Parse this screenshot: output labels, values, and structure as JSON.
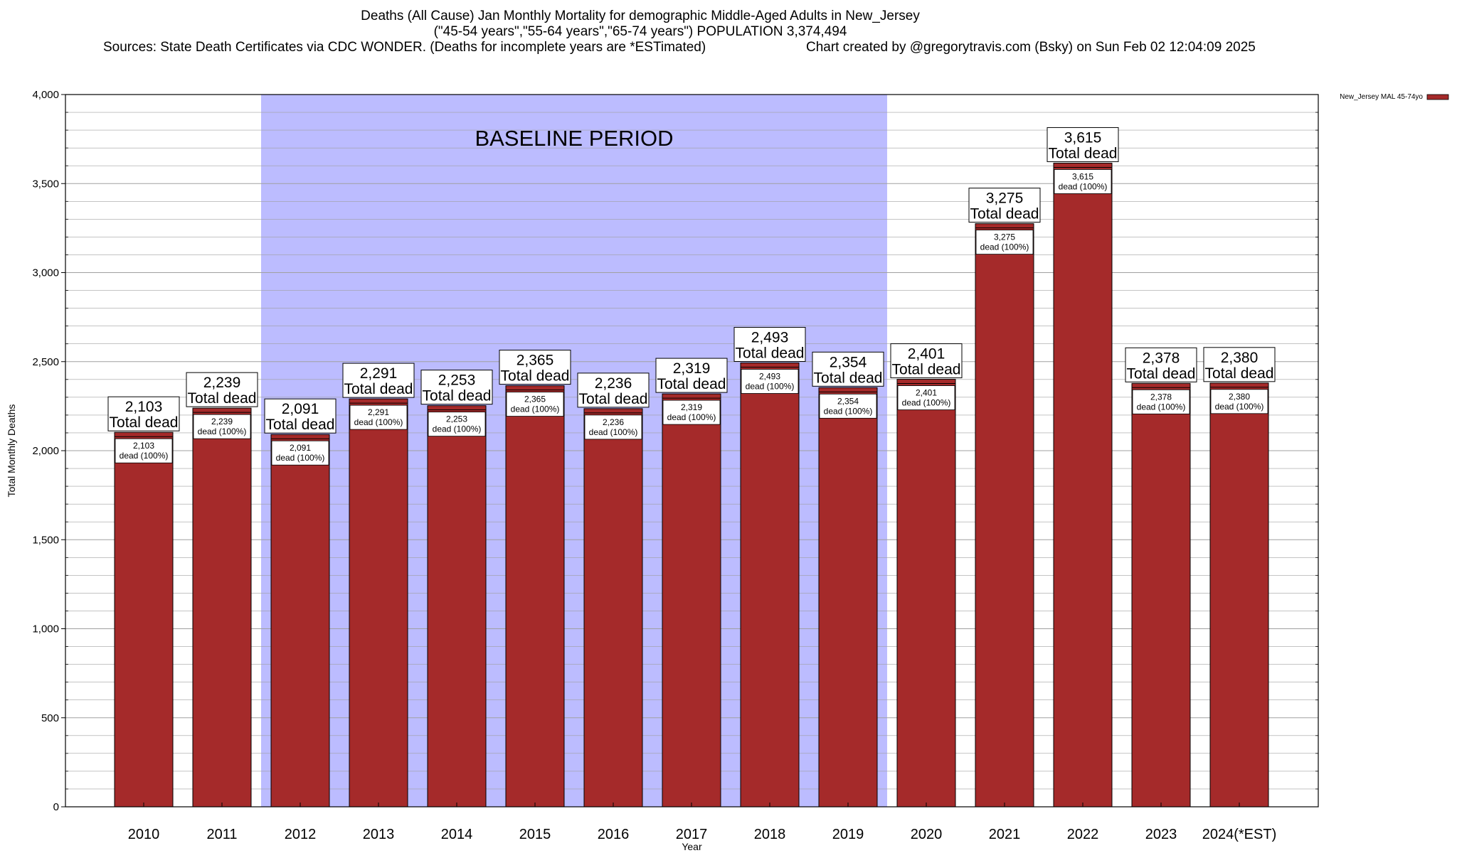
{
  "header": {
    "title_line1": "Deaths (All Cause) Jan Monthly Mortality for demographic Middle-Aged Adults in New_Jersey",
    "title_line2": "(\"45-54 years\",\"55-64 years\",\"65-74 years\") POPULATION 3,374,494",
    "sources": "Sources: State Death Certificates via CDC WONDER. (Deaths for incomplete years are *ESTimated)",
    "credit": "Chart created by @gregorytravis.com (Bsky) on Sun Feb 02 12:04:09 2025"
  },
  "colors": {
    "bar_fill": "#a52a2a",
    "bar_outline": "#000000",
    "baseline_shade": "#bcbcff",
    "grid": "#a0a0a0"
  },
  "chart_data": {
    "type": "bar",
    "xlabel": "Year",
    "ylabel": "Total Monthly Deaths",
    "ylim": [
      0,
      4000
    ],
    "yticks": [
      0,
      500,
      1000,
      1500,
      2000,
      2500,
      3000,
      3500,
      4000
    ],
    "ytick_labels": [
      "0",
      "500",
      "1,000",
      "1,500",
      "2,000",
      "2,500",
      "3,000",
      "3,500",
      "4,000"
    ],
    "grid": true,
    "legend": {
      "position": "top-right",
      "entries": [
        "New_Jersey MAL 45-74yo"
      ]
    },
    "categories": [
      "2010",
      "2011",
      "2012",
      "2013",
      "2014",
      "2015",
      "2016",
      "2017",
      "2018",
      "2019",
      "2020",
      "2021",
      "2022",
      "2023",
      "2024(*EST)"
    ],
    "series": [
      {
        "name": "New_Jersey MAL 45-74yo",
        "values": [
          2103,
          2239,
          2091,
          2291,
          2253,
          2365,
          2236,
          2319,
          2493,
          2354,
          2401,
          3275,
          3615,
          2378,
          2380
        ]
      }
    ],
    "value_labels": [
      "2,103",
      "2,239",
      "2,091",
      "2,291",
      "2,253",
      "2,365",
      "2,236",
      "2,319",
      "2,493",
      "2,354",
      "2,401",
      "3,275",
      "3,615",
      "2,378",
      "2,380"
    ],
    "total_label_text": "Total dead",
    "inner_label_text": "dead (100%)",
    "annotation": {
      "text": "BASELINE PERIOD",
      "from_category": "2012",
      "to_category": "2019"
    }
  }
}
